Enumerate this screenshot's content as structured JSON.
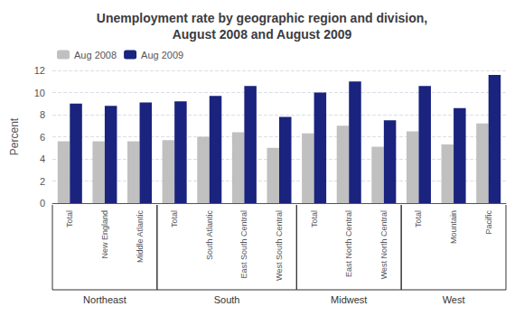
{
  "chart_data": {
    "type": "bar",
    "title": "Unemployment rate by geographic region and division,\nAugust 2008 and August 2009",
    "ylabel": "Percent",
    "categories": [
      "Total",
      "New England",
      "Middle Atlantic",
      "Total",
      "South Atlantic",
      "East South Central",
      "West South Central",
      "Total",
      "East North Central",
      "West North Central",
      "Total",
      "Mountain",
      "Pacific"
    ],
    "groups": [
      {
        "name": "Northeast",
        "size": 3
      },
      {
        "name": "South",
        "size": 4
      },
      {
        "name": "Midwest",
        "size": 3
      },
      {
        "name": "West",
        "size": 3
      }
    ],
    "series": [
      {
        "name": "Aug 2008",
        "color": "#c0c0c0",
        "values": [
          5.6,
          5.6,
          5.6,
          5.7,
          6.0,
          6.4,
          5.0,
          6.3,
          7.0,
          5.1,
          6.5,
          5.3,
          7.2
        ]
      },
      {
        "name": "Aug 2009",
        "color": "#1a237e",
        "values": [
          9.0,
          8.8,
          9.1,
          9.2,
          9.7,
          10.6,
          7.8,
          10.0,
          11.0,
          7.5,
          10.6,
          8.6,
          11.6
        ]
      }
    ],
    "ylim": [
      0,
      12
    ],
    "yticks": [
      0,
      2,
      4,
      6,
      8,
      10,
      12
    ],
    "grid": true,
    "legend": "upper left"
  }
}
